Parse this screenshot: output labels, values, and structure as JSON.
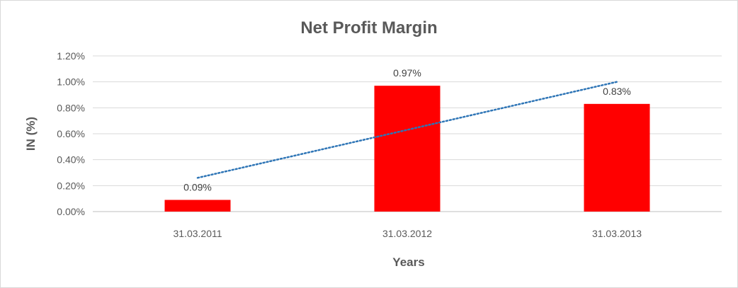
{
  "chart_data": {
    "type": "bar",
    "title": "Net Profit Margin",
    "xlabel": "Years",
    "ylabel": "IN (%)",
    "categories": [
      "31.03.2011",
      "31.03.2012",
      "31.03.2013"
    ],
    "values": [
      0.09,
      0.97,
      0.83
    ],
    "data_labels": [
      "0.09%",
      "0.97%",
      "0.83%"
    ],
    "ylim": [
      0,
      1.2
    ],
    "yticks": [
      0,
      0.2,
      0.4,
      0.6,
      0.8,
      1.0,
      1.2
    ],
    "ytick_labels": [
      "0.00%",
      "0.20%",
      "0.40%",
      "0.60%",
      "0.80%",
      "1.00%",
      "1.20%"
    ],
    "bar_color": "#ff0000",
    "trendline": {
      "type": "linear",
      "style": "dotted",
      "color": "#2e75b6"
    },
    "grid": true,
    "legend": "none"
  }
}
